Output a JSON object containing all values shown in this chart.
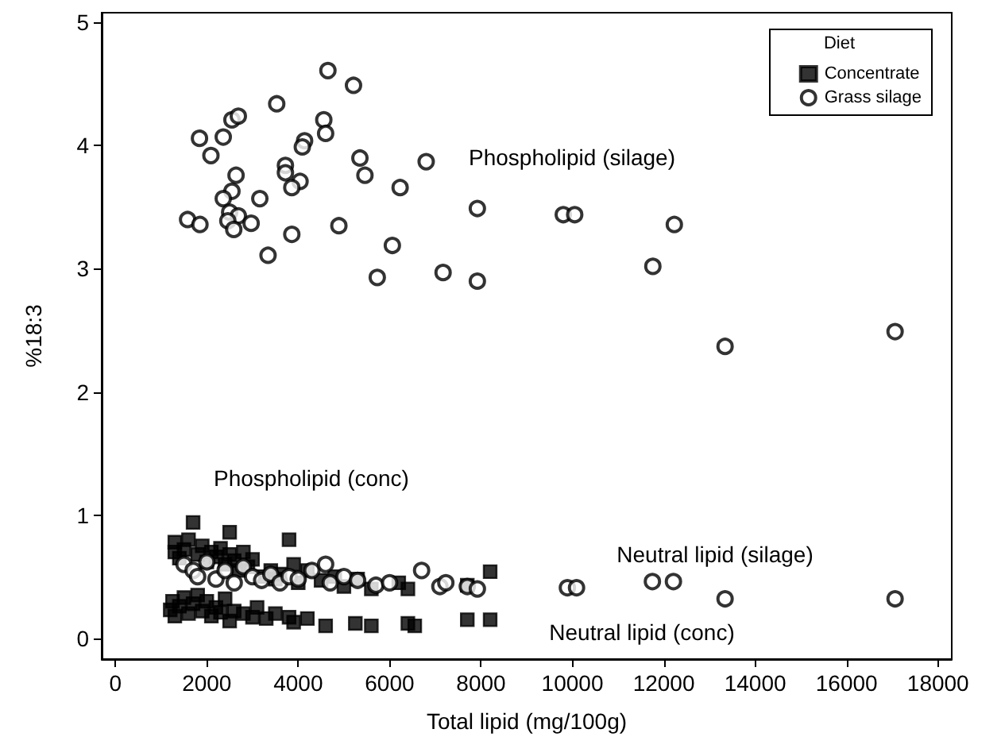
{
  "chart_data": {
    "type": "scatter",
    "xlabel": "Total lipid (mg/100g)",
    "ylabel": "%18:3",
    "legend_title": "Diet",
    "legend": "top right",
    "grid": false,
    "xlim": [
      -300,
      18300
    ],
    "ylim": [
      -0.17,
      5.08
    ],
    "xticks": [
      0,
      2000,
      4000,
      6000,
      8000,
      10000,
      12000,
      14000,
      16000,
      18000
    ],
    "yticks": [
      0,
      1,
      2,
      3,
      4,
      5
    ],
    "annotations": [
      "Phospholipid (silage)",
      "Phospholipid (conc)",
      "Neutral lipid (silage)",
      "Neutral lipid (conc)"
    ],
    "series": [
      {
        "name": "Concentrate",
        "color": "#000000",
        "marker": "square",
        "x": [
          1300,
          1300,
          1400,
          1500,
          1600,
          1700,
          1800,
          1900,
          2000,
          2100,
          2200,
          2300,
          2400,
          2500,
          2500,
          2600,
          2700,
          2800,
          2900,
          3000,
          3200,
          3400,
          3500,
          3600,
          3800,
          3900,
          4000,
          4200,
          4500,
          4800,
          5000,
          5300,
          5600,
          6200,
          6400,
          7700,
          8200,
          1200,
          1250,
          1300,
          1400,
          1500,
          1600,
          1700,
          1800,
          1900,
          2000,
          2100,
          2200,
          2300,
          2400,
          2500,
          2600,
          2800,
          3000,
          3100,
          3300,
          3500,
          3800,
          3900,
          4200,
          4600,
          5250,
          5600,
          6400,
          6550,
          7700,
          8200
        ],
        "values": [
          0.78,
          0.7,
          0.65,
          0.72,
          0.8,
          0.94,
          0.68,
          0.75,
          0.62,
          0.7,
          0.66,
          0.73,
          0.6,
          0.86,
          0.68,
          0.63,
          0.55,
          0.7,
          0.58,
          0.64,
          0.5,
          0.55,
          0.48,
          0.52,
          0.8,
          0.6,
          0.45,
          0.55,
          0.47,
          0.5,
          0.42,
          0.48,
          0.4,
          0.45,
          0.4,
          0.43,
          0.54,
          0.23,
          0.3,
          0.18,
          0.26,
          0.33,
          0.2,
          0.28,
          0.35,
          0.22,
          0.3,
          0.18,
          0.25,
          0.21,
          0.32,
          0.14,
          0.22,
          0.2,
          0.17,
          0.25,
          0.16,
          0.2,
          0.17,
          0.13,
          0.16,
          0.1,
          0.12,
          0.1,
          0.12,
          0.1,
          0.15,
          0.15
        ]
      },
      {
        "name": "Grass silage",
        "color": "#000000",
        "marker": "circle",
        "x": [
          4650,
          5210,
          3530,
          2550,
          2690,
          4560,
          1840,
          2360,
          4600,
          4140,
          4090,
          2090,
          5350,
          6800,
          5460,
          2640,
          3720,
          3720,
          4040,
          3860,
          6230,
          2550,
          2360,
          3160,
          7920,
          2500,
          2690,
          2460,
          2590,
          1580,
          1850,
          2970,
          4890,
          3860,
          3340,
          6060,
          5730,
          7170,
          7920,
          9800,
          10050,
          12230,
          11760,
          13340,
          17060,
          1500,
          1700,
          1800,
          2000,
          2200,
          2400,
          2600,
          2800,
          3000,
          3200,
          3400,
          3600,
          3800,
          4000,
          4300,
          4600,
          4700,
          5000,
          5300,
          5700,
          6000,
          6700,
          7100,
          7230,
          7700,
          7920,
          9890,
          10090,
          11750,
          12210,
          13340,
          17060
        ],
        "values": [
          4.61,
          4.49,
          4.34,
          4.21,
          4.24,
          4.21,
          4.06,
          4.07,
          4.1,
          4.04,
          3.99,
          3.92,
          3.9,
          3.87,
          3.76,
          3.76,
          3.84,
          3.78,
          3.71,
          3.66,
          3.66,
          3.63,
          3.57,
          3.57,
          3.49,
          3.46,
          3.43,
          3.39,
          3.32,
          3.4,
          3.36,
          3.37,
          3.35,
          3.28,
          3.11,
          3.19,
          2.93,
          2.97,
          2.9,
          3.44,
          3.44,
          3.36,
          3.02,
          2.37,
          2.49,
          0.6,
          0.55,
          0.5,
          0.62,
          0.48,
          0.55,
          0.45,
          0.58,
          0.5,
          0.47,
          0.52,
          0.45,
          0.5,
          0.48,
          0.55,
          0.6,
          0.45,
          0.5,
          0.47,
          0.43,
          0.45,
          0.55,
          0.42,
          0.45,
          0.42,
          0.4,
          0.41,
          0.41,
          0.46,
          0.46,
          0.32,
          0.32
        ]
      }
    ]
  }
}
